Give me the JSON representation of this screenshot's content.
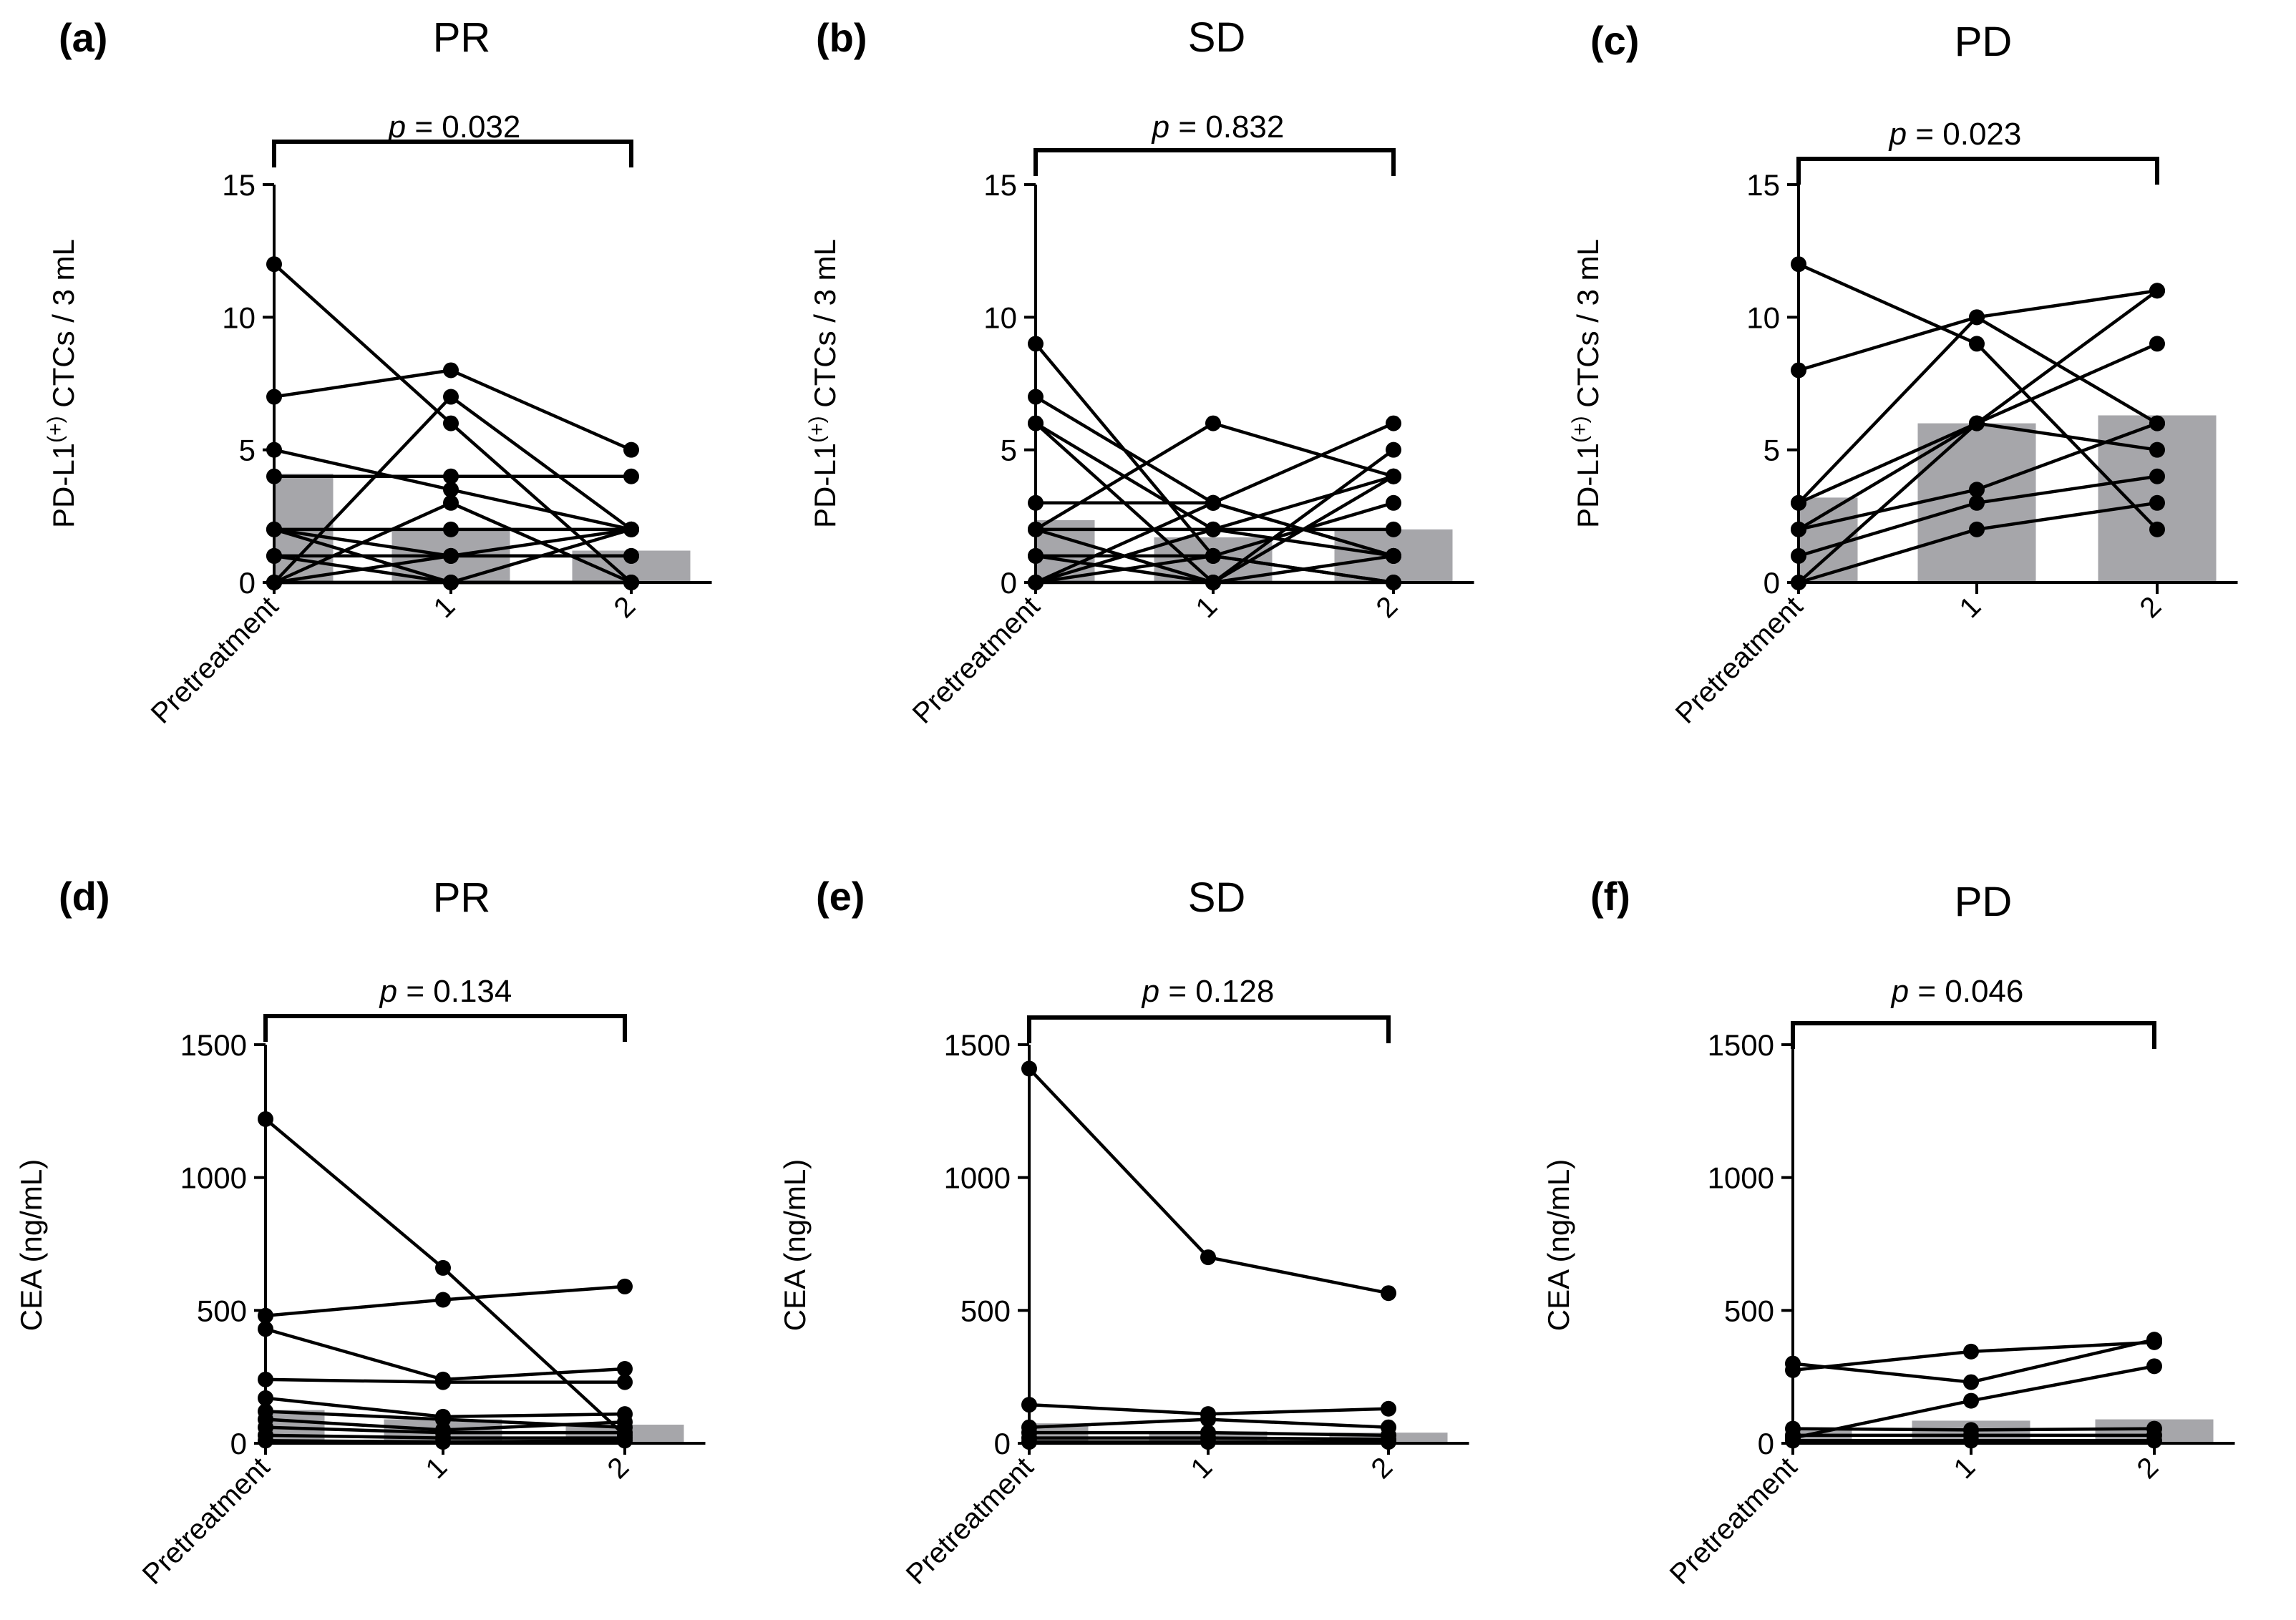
{
  "colors": {
    "bar": "#a6a6aa",
    "line": "#000000",
    "background": "#ffffff"
  },
  "chart_data": [
    {
      "panel": "(a)",
      "title": "PR",
      "type": "bar",
      "categories": [
        "Pretreatment",
        "1",
        "2"
      ],
      "ylabel": "PD-L1(+) CTCs  / 3 mL",
      "ylabel_main": "PD-L1",
      "ylabel_sup": "(+)",
      "ylabel_rest": " CTCs  / 3 mL",
      "ylim": [
        0,
        15
      ],
      "yticks": [
        0,
        5,
        10,
        15
      ],
      "bars": [
        4.1,
        2.0,
        1.2
      ],
      "pvalue": {
        "prefix": "p",
        "text": " = 0.032"
      },
      "series": [
        {
          "values": [
            12,
            6,
            0
          ]
        },
        {
          "values": [
            7,
            8,
            5
          ]
        },
        {
          "values": [
            5,
            3.5,
            2
          ]
        },
        {
          "values": [
            4,
            4,
            4
          ]
        },
        {
          "values": [
            2,
            2,
            2
          ]
        },
        {
          "values": [
            2,
            1,
            1
          ]
        },
        {
          "values": [
            2,
            0,
            0
          ]
        },
        {
          "values": [
            1,
            1,
            2
          ]
        },
        {
          "values": [
            1,
            0,
            0
          ]
        },
        {
          "values": [
            0,
            7,
            2
          ]
        },
        {
          "values": [
            0,
            3,
            0
          ]
        },
        {
          "values": [
            0,
            1,
            1
          ]
        },
        {
          "values": [
            0,
            0,
            2
          ]
        },
        {
          "values": [
            0,
            0,
            0
          ]
        }
      ]
    },
    {
      "panel": "(b)",
      "title": "SD",
      "type": "bar",
      "categories": [
        "Pretreatment",
        "1",
        "2"
      ],
      "ylabel": "PD-L1(+) CTCs  / 3 mL",
      "ylabel_main": "PD-L1",
      "ylabel_sup": "(+)",
      "ylabel_rest": " CTCs  / 3 mL",
      "ylim": [
        0,
        15
      ],
      "yticks": [
        0,
        5,
        10,
        15
      ],
      "bars": [
        2.35,
        1.7,
        2.0
      ],
      "pvalue": {
        "prefix": "p",
        "text": " = 0.832"
      },
      "series": [
        {
          "values": [
            9,
            1,
            0
          ]
        },
        {
          "values": [
            7,
            3,
            1
          ]
        },
        {
          "values": [
            6,
            0,
            0
          ]
        },
        {
          "values": [
            6,
            2,
            1
          ]
        },
        {
          "values": [
            3,
            3,
            1
          ]
        },
        {
          "values": [
            2,
            2,
            2
          ]
        },
        {
          "values": [
            2,
            0,
            4
          ]
        },
        {
          "values": [
            2,
            6,
            4
          ]
        },
        {
          "values": [
            1,
            1,
            3
          ]
        },
        {
          "values": [
            1,
            0,
            5
          ]
        },
        {
          "values": [
            0,
            3,
            6
          ]
        },
        {
          "values": [
            0,
            2,
            4
          ]
        },
        {
          "values": [
            0,
            1,
            0
          ]
        },
        {
          "values": [
            0,
            0,
            1
          ]
        }
      ]
    },
    {
      "panel": "(c)",
      "title": "PD",
      "type": "bar",
      "categories": [
        "Pretreatment",
        "1",
        "2"
      ],
      "ylabel": "PD-L1(+) CTCs  / 3 mL",
      "ylabel_main": "PD-L1",
      "ylabel_sup": "(+)",
      "ylabel_rest": " CTCs  / 3 mL",
      "ylim": [
        0,
        15
      ],
      "yticks": [
        0,
        5,
        10,
        15
      ],
      "bars": [
        3.2,
        6.0,
        6.3
      ],
      "pvalue": {
        "prefix": "p",
        "text": " = 0.023"
      },
      "series": [
        {
          "values": [
            12,
            9,
            2
          ]
        },
        {
          "values": [
            8,
            10,
            11
          ]
        },
        {
          "values": [
            3,
            10,
            6
          ]
        },
        {
          "values": [
            3,
            6,
            9
          ]
        },
        {
          "values": [
            2,
            3.5,
            6
          ]
        },
        {
          "values": [
            2,
            6,
            5
          ]
        },
        {
          "values": [
            1,
            3,
            4
          ]
        },
        {
          "values": [
            0,
            6,
            11
          ]
        },
        {
          "values": [
            0,
            2,
            3
          ]
        }
      ]
    },
    {
      "panel": "(d)",
      "title": "PR",
      "type": "bar",
      "categories": [
        "Pretreatment",
        "1",
        "2"
      ],
      "ylabel": "CEA (ng/mL)",
      "ylim": [
        0,
        1500
      ],
      "yticks": [
        0,
        500,
        1000,
        1500
      ],
      "bars": [
        125,
        90,
        70
      ],
      "pvalue": {
        "prefix": "p",
        "text": " = 0.134"
      },
      "series": [
        {
          "values": [
            1220,
            660,
            30
          ]
        },
        {
          "values": [
            480,
            540,
            590
          ]
        },
        {
          "values": [
            430,
            240,
            280
          ]
        },
        {
          "values": [
            240,
            230,
            230
          ]
        },
        {
          "values": [
            170,
            100,
            110
          ]
        },
        {
          "values": [
            120,
            90,
            60
          ]
        },
        {
          "values": [
            90,
            50,
            80
          ]
        },
        {
          "values": [
            60,
            40,
            40
          ]
        },
        {
          "values": [
            30,
            20,
            20
          ]
        },
        {
          "values": [
            10,
            5,
            10
          ]
        }
      ]
    },
    {
      "panel": "(e)",
      "title": "SD",
      "type": "bar",
      "categories": [
        "Pretreatment",
        "1",
        "2"
      ],
      "ylabel": "CEA (ng/mL)",
      "ylim": [
        0,
        1500
      ],
      "yticks": [
        0,
        500,
        1000,
        1500
      ],
      "bars": [
        75,
        45,
        40
      ],
      "pvalue": {
        "prefix": "p",
        "text": " = 0.128"
      },
      "series": [
        {
          "values": [
            1410,
            700,
            565
          ]
        },
        {
          "values": [
            145,
            110,
            130
          ]
        },
        {
          "values": [
            60,
            90,
            60
          ]
        },
        {
          "values": [
            40,
            40,
            30
          ]
        },
        {
          "values": [
            20,
            20,
            15
          ]
        },
        {
          "values": [
            5,
            5,
            5
          ]
        }
      ]
    },
    {
      "panel": "(f)",
      "title": "PD",
      "type": "bar",
      "categories": [
        "Pretreatment",
        "1",
        "2"
      ],
      "ylabel": "CEA (ng/mL)",
      "ylim": [
        0,
        1500
      ],
      "yticks": [
        0,
        500,
        1000,
        1500
      ],
      "bars": [
        50,
        85,
        90
      ],
      "pvalue": {
        "prefix": "p",
        "text": " = 0.046"
      },
      "series": [
        {
          "values": [
            300,
            230,
            390
          ]
        },
        {
          "values": [
            275,
            345,
            380
          ]
        },
        {
          "values": [
            20,
            160,
            290
          ]
        },
        {
          "values": [
            55,
            50,
            55
          ]
        },
        {
          "values": [
            30,
            30,
            30
          ]
        },
        {
          "values": [
            10,
            10,
            10
          ]
        }
      ]
    }
  ]
}
